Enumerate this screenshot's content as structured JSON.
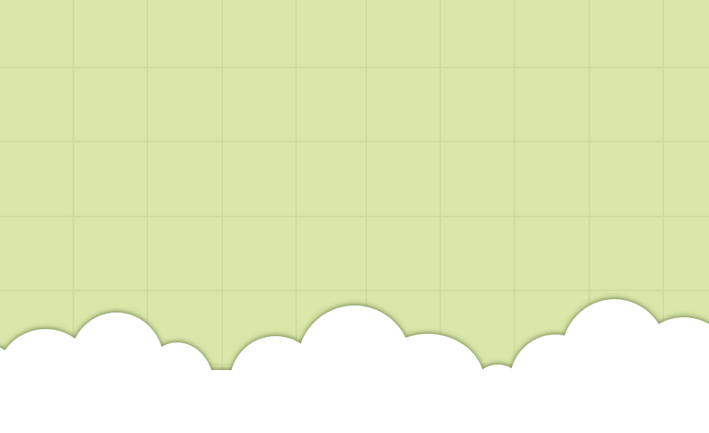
{
  "scene": {
    "background_color": "#d9e7a9",
    "grid_line_color": "#cfdca0",
    "cloud_color": "#ffffff",
    "cloud_shadow_color": "#4a5a2a"
  }
}
